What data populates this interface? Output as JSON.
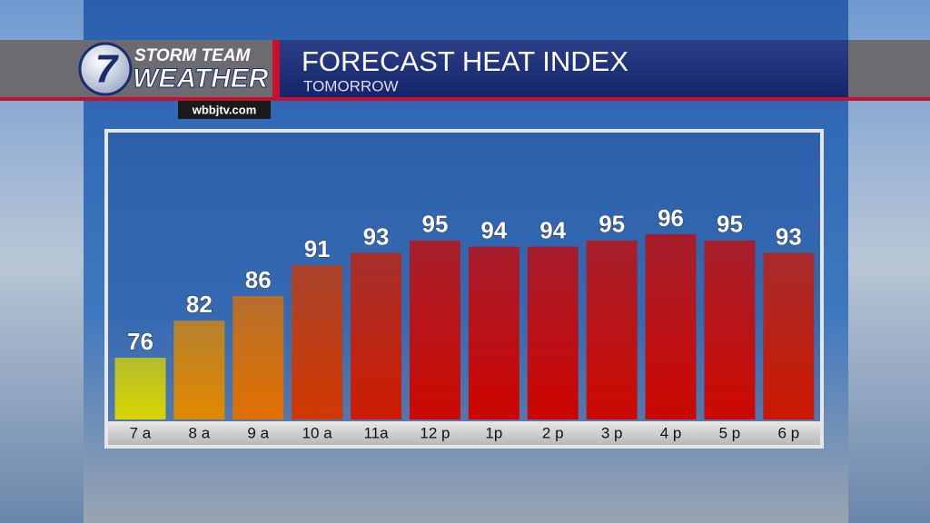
{
  "branding": {
    "logo": "7",
    "name_top": "STORM TEAM",
    "name_bottom": "WEATHER",
    "website": "wbbjtv.com"
  },
  "chart_data": {
    "type": "bar",
    "title": "FORECAST HEAT INDEX",
    "subtitle": "TOMORROW",
    "categories": [
      "7 a",
      "8 a",
      "9 a",
      "10 a",
      "11a",
      "12 p",
      "1p",
      "2 p",
      "3 p",
      "4 p",
      "5 p",
      "6 p"
    ],
    "values": [
      76,
      82,
      86,
      91,
      93,
      95,
      94,
      94,
      95,
      96,
      95,
      93
    ],
    "colors": [
      "#d8d400",
      "#e08800",
      "#e07000",
      "#d03800",
      "#cc1c00",
      "#cc0800",
      "#cc0400",
      "#cc0400",
      "#cc0800",
      "#cc0600",
      "#cc0800",
      "#cc1800"
    ]
  }
}
